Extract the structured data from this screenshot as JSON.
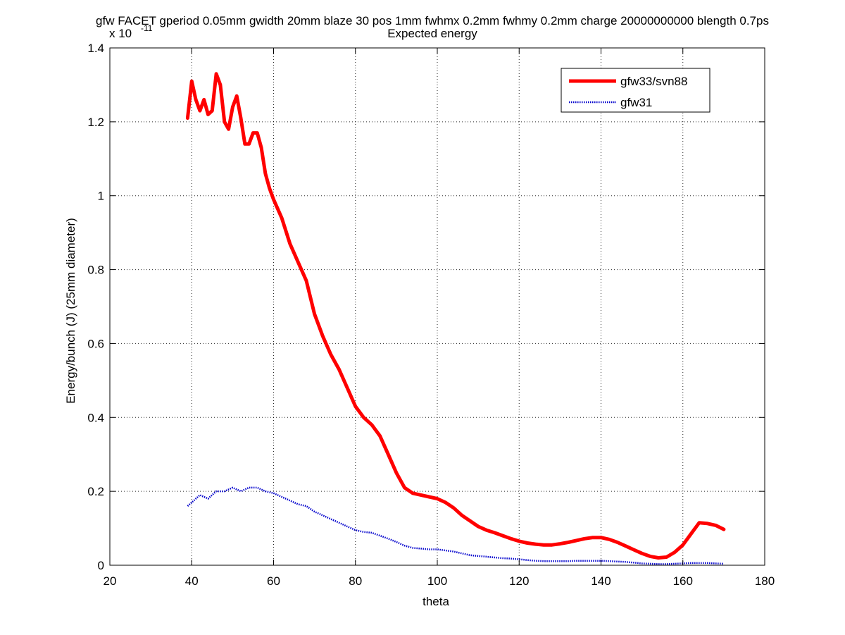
{
  "chart_data": {
    "type": "line",
    "title": "gfw FACET gperiod 0.05mm gwidth 20mm blaze 30 pos 1mm fwhmx 0.2mm fwhmy 0.2mm charge 20000000000 blength 0.7ps",
    "subtitle": "Expected energy",
    "xlabel": "theta",
    "ylabel": "Energy/bunch (J) (25mm diameter)",
    "y_exponent_base": "x 10",
    "y_exponent_power": "-11",
    "xlim": [
      20,
      180
    ],
    "ylim": [
      0,
      1.4
    ],
    "xticks": [
      20,
      40,
      60,
      80,
      100,
      120,
      140,
      160,
      180
    ],
    "yticks": [
      0,
      0.2,
      0.4,
      0.6,
      0.8,
      1,
      1.2,
      1.4
    ],
    "xtick_labels": [
      "20",
      "40",
      "60",
      "80",
      "100",
      "120",
      "140",
      "160",
      "180"
    ],
    "ytick_labels": [
      "0",
      "0.2",
      "0.4",
      "0.6",
      "0.8",
      "1",
      "1.2",
      "1.4"
    ],
    "grid": true,
    "legend_position": "top-right",
    "series": [
      {
        "name": "gfw33/svn88",
        "color": "#ff0000",
        "style": "solid",
        "x": [
          39,
          40,
          41,
          42,
          43,
          44,
          45,
          46,
          47,
          48,
          49,
          50,
          51,
          52,
          53,
          54,
          55,
          56,
          57,
          58,
          59,
          60,
          62,
          64,
          66,
          68,
          70,
          72,
          74,
          76,
          78,
          80,
          82,
          84,
          86,
          88,
          90,
          92,
          94,
          96,
          98,
          100,
          102,
          104,
          106,
          108,
          110,
          112,
          114,
          116,
          118,
          120,
          122,
          124,
          126,
          128,
          130,
          132,
          134,
          136,
          138,
          140,
          142,
          144,
          146,
          148,
          150,
          152,
          154,
          156,
          158,
          160,
          162,
          164,
          166,
          168,
          170
        ],
        "values": [
          1.21,
          1.31,
          1.26,
          1.23,
          1.26,
          1.22,
          1.23,
          1.33,
          1.3,
          1.2,
          1.18,
          1.24,
          1.27,
          1.21,
          1.14,
          1.14,
          1.17,
          1.17,
          1.13,
          1.06,
          1.02,
          0.99,
          0.94,
          0.87,
          0.82,
          0.77,
          0.68,
          0.62,
          0.57,
          0.53,
          0.48,
          0.43,
          0.4,
          0.38,
          0.35,
          0.3,
          0.25,
          0.21,
          0.195,
          0.19,
          0.185,
          0.18,
          0.17,
          0.155,
          0.135,
          0.12,
          0.105,
          0.095,
          0.088,
          0.08,
          0.072,
          0.065,
          0.06,
          0.057,
          0.055,
          0.055,
          0.058,
          0.062,
          0.067,
          0.072,
          0.075,
          0.075,
          0.07,
          0.062,
          0.052,
          0.042,
          0.032,
          0.024,
          0.02,
          0.022,
          0.035,
          0.055,
          0.085,
          0.115,
          0.113,
          0.108,
          0.097
        ]
      },
      {
        "name": "gfw31",
        "color": "#0000cc",
        "style": "dotted",
        "x": [
          39,
          40,
          42,
          44,
          46,
          48,
          50,
          52,
          54,
          56,
          58,
          60,
          62,
          64,
          66,
          68,
          70,
          72,
          74,
          76,
          78,
          80,
          82,
          84,
          86,
          88,
          90,
          92,
          94,
          96,
          98,
          100,
          102,
          104,
          106,
          108,
          110,
          112,
          114,
          116,
          118,
          120,
          122,
          124,
          126,
          128,
          130,
          132,
          134,
          136,
          138,
          140,
          142,
          144,
          146,
          148,
          150,
          152,
          154,
          156,
          158,
          160,
          162,
          164,
          166,
          168,
          170
        ],
        "values": [
          0.16,
          0.17,
          0.19,
          0.18,
          0.2,
          0.2,
          0.21,
          0.2,
          0.21,
          0.21,
          0.2,
          0.195,
          0.185,
          0.175,
          0.165,
          0.16,
          0.145,
          0.135,
          0.125,
          0.115,
          0.105,
          0.095,
          0.09,
          0.088,
          0.08,
          0.072,
          0.063,
          0.053,
          0.047,
          0.045,
          0.043,
          0.043,
          0.04,
          0.037,
          0.032,
          0.027,
          0.025,
          0.023,
          0.021,
          0.019,
          0.018,
          0.016,
          0.014,
          0.012,
          0.011,
          0.011,
          0.011,
          0.011,
          0.012,
          0.012,
          0.012,
          0.012,
          0.011,
          0.01,
          0.009,
          0.007,
          0.005,
          0.004,
          0.003,
          0.003,
          0.004,
          0.005,
          0.006,
          0.006,
          0.006,
          0.005,
          0.004
        ]
      }
    ]
  }
}
